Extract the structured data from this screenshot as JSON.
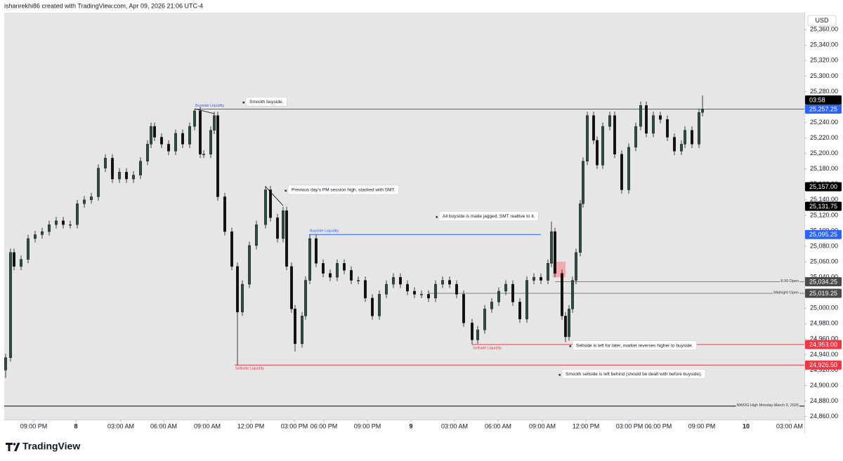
{
  "header": "ishanrekhi86 created with TradingView.com, Apr 09, 2026 21:06 UTC-4",
  "brand": "TradingView",
  "chart_data": {
    "type": "candlestick",
    "currency": "USD",
    "up_color": "#2f4f3c",
    "down_color": "#111111",
    "xlim": [
      6,
      1145
    ],
    "ylim": [
      24856,
      25382
    ],
    "x": [
      8,
      15,
      20,
      30,
      40,
      50,
      60,
      70,
      80,
      90,
      100,
      110,
      120,
      130,
      140,
      150,
      160,
      170,
      180,
      190,
      200,
      210,
      215,
      220,
      230,
      240,
      250,
      260,
      270,
      277,
      285,
      290,
      300,
      305,
      310,
      320,
      330,
      338,
      345,
      355,
      365,
      378,
      385,
      395,
      403,
      408,
      415,
      420,
      430,
      435,
      441,
      450,
      460,
      470,
      480,
      490,
      500,
      510,
      520,
      530,
      540,
      550,
      560,
      570,
      580,
      590,
      600,
      610,
      620,
      630,
      640,
      650,
      660,
      672,
      680,
      690,
      700,
      710,
      720,
      730,
      740,
      750,
      760,
      770,
      780,
      785,
      790,
      800,
      805,
      810,
      815,
      820,
      826,
      830,
      836,
      845,
      850,
      858,
      868,
      875,
      885,
      895,
      905,
      912,
      920,
      930,
      940,
      950,
      960,
      970,
      975,
      985,
      995,
      1000
    ],
    "open": [
      24920,
      24936,
      25072,
      25054,
      25063,
      25090,
      25095,
      25099,
      25108,
      25113,
      25108,
      25108,
      25135,
      25140,
      25144,
      25181,
      25194,
      25167,
      25176,
      25167,
      25172,
      25190,
      25212,
      25235,
      25221,
      25212,
      25203,
      25226,
      25212,
      25235,
      25255,
      25199,
      25199,
      25230,
      25249,
      25144,
      25099,
      25054,
      24995,
      25031,
      25081,
      25108,
      25153,
      25117,
      25090,
      25126,
      25054,
      24999,
      24954,
      24990,
      25036,
      25090,
      25058,
      25045,
      25040,
      25058,
      25049,
      25036,
      25036,
      25013,
      24990,
      25018,
      25031,
      25040,
      25031,
      25022,
      25018,
      25018,
      25013,
      25031,
      25036,
      25031,
      25018,
      24981,
      24959,
      24972,
      24999,
      25008,
      25022,
      25031,
      25008,
      24986,
      25036,
      25040,
      25036,
      25058,
      25099,
      25045,
      24990,
      24963,
      24999,
      25036,
      25072,
      25135,
      25190,
      25249,
      25217,
      25185,
      25235,
      25249,
      25199,
      25153,
      25208,
      25235,
      25262,
      25226,
      25249,
      25244,
      25221,
      25203,
      25212,
      25230,
      25212,
      25253
    ],
    "high": [
      24941,
      25077,
      25077,
      25068,
      25095,
      25100,
      25104,
      25113,
      25118,
      25118,
      25113,
      25140,
      25145,
      25149,
      25186,
      25199,
      25199,
      25181,
      25181,
      25177,
      25195,
      25217,
      25240,
      25240,
      25226,
      25217,
      25231,
      25231,
      25240,
      25257,
      25260,
      25204,
      25235,
      25254,
      25254,
      25149,
      25104,
      25059,
      25036,
      25086,
      25113,
      25158,
      25158,
      25122,
      25131,
      25131,
      25059,
      25004,
      24995,
      25041,
      25095,
      25095,
      25063,
      25050,
      25063,
      25063,
      25054,
      25041,
      25041,
      25018,
      25023,
      25036,
      25045,
      25045,
      25036,
      25027,
      25023,
      25023,
      25036,
      25041,
      25041,
      25036,
      25023,
      24986,
      24977,
      25004,
      25013,
      25027,
      25036,
      25036,
      25013,
      25041,
      25045,
      25045,
      25063,
      25112,
      25104,
      25050,
      24995,
      25004,
      25041,
      25077,
      25140,
      25195,
      25254,
      25254,
      25222,
      25240,
      25254,
      25254,
      25204,
      25213,
      25240,
      25267,
      25267,
      25254,
      25254,
      25249,
      25226,
      25217,
      25235,
      25235,
      25258,
      25275
    ],
    "low": [
      24910,
      24931,
      25049,
      25049,
      25058,
      25085,
      25090,
      25094,
      25103,
      25103,
      25103,
      25103,
      25130,
      25135,
      25139,
      25176,
      25162,
      25162,
      25162,
      25162,
      25167,
      25185,
      25207,
      25216,
      25207,
      25198,
      25198,
      25207,
      25207,
      25230,
      25194,
      25194,
      25194,
      25225,
      25139,
      25094,
      25049,
      24926.5,
      24990,
      25026,
      25076,
      25103,
      25112,
      25085,
      25085,
      25049,
      24994,
      24944,
      24949,
      24985,
      25031,
      25053,
      25040,
      25035,
      25035,
      25044,
      25031,
      25031,
      25008,
      24985,
      24985,
      25013,
      25026,
      25026,
      25017,
      25013,
      25013,
      25008,
      25008,
      25026,
      25026,
      25013,
      24976,
      24953,
      24954,
      24967,
      24994,
      25003,
      25017,
      25003,
      24981,
      24981,
      25031,
      25031,
      25031,
      25053,
      25040,
      24985,
      24956,
      24958,
      24994,
      25031,
      25067,
      25130,
      25185,
      25212,
      25180,
      25180,
      25230,
      25194,
      25148,
      25148,
      25203,
      25230,
      25221,
      25221,
      25239,
      25216,
      25198,
      25198,
      25207,
      25207,
      25207,
      25248
    ],
    "close": [
      24936,
      25072,
      25054,
      25063,
      25090,
      25095,
      25099,
      25108,
      25113,
      25108,
      25108,
      25135,
      25140,
      25144,
      25181,
      25194,
      25167,
      25176,
      25167,
      25172,
      25190,
      25212,
      25235,
      25221,
      25212,
      25203,
      25226,
      25212,
      25235,
      25255,
      25199,
      25199,
      25230,
      25249,
      25144,
      25099,
      25054,
      24995,
      25031,
      25081,
      25108,
      25153,
      25117,
      25090,
      25126,
      25054,
      24999,
      24954,
      24990,
      25036,
      25090,
      25058,
      25045,
      25040,
      25058,
      25049,
      25036,
      25036,
      25013,
      24990,
      25018,
      25031,
      25040,
      25031,
      25022,
      25018,
      25018,
      25013,
      25031,
      25036,
      25031,
      25018,
      24981,
      24959,
      24972,
      24999,
      25008,
      25022,
      25031,
      25008,
      24986,
      25036,
      25040,
      25036,
      25058,
      25099,
      25045,
      24990,
      24963,
      24999,
      25036,
      25072,
      25135,
      25190,
      25249,
      25217,
      25185,
      25235,
      25249,
      25199,
      25153,
      25208,
      25235,
      25262,
      25226,
      25249,
      25244,
      25221,
      25203,
      25212,
      25230,
      25212,
      25253,
      25257.25
    ],
    "yticks": [
      {
        "value": 24860,
        "label": "24,860.00"
      },
      {
        "value": 24880,
        "label": "24,880.00"
      },
      {
        "value": 24900,
        "label": "24,900.00"
      },
      {
        "value": 24920,
        "label": "24,920.00"
      },
      {
        "value": 24940,
        "label": "24,940.00"
      },
      {
        "value": 24960,
        "label": "24,960.00"
      },
      {
        "value": 24980,
        "label": "24,980.00"
      },
      {
        "value": 25000,
        "label": "25,000.00"
      },
      {
        "value": 25020,
        "label": "25,020.00"
      },
      {
        "value": 25040,
        "label": "25,040.00"
      },
      {
        "value": 25060,
        "label": "25,060.00"
      },
      {
        "value": 25080,
        "label": "25,080.00"
      },
      {
        "value": 25100,
        "label": "25,100.00"
      },
      {
        "value": 25120,
        "label": "25,120.00"
      },
      {
        "value": 25140,
        "label": "25,140.00"
      },
      {
        "value": 25160,
        "label": "25,160.00"
      },
      {
        "value": 25180,
        "label": "25,180.00"
      },
      {
        "value": 25200,
        "label": "25,200.00"
      },
      {
        "value": 25220,
        "label": "25,220.00"
      },
      {
        "value": 25240,
        "label": "25,240.00"
      },
      {
        "value": 25260,
        "label": "25,260.00"
      },
      {
        "value": 25280,
        "label": "25,280.00"
      },
      {
        "value": 25300,
        "label": "25,300.00"
      },
      {
        "value": 25320,
        "label": "25,320.00"
      },
      {
        "value": 25340,
        "label": "25,340.00"
      },
      {
        "value": 25360,
        "label": "25,360.00"
      }
    ],
    "xticks": [
      {
        "value": 48,
        "label": "09:00 PM"
      },
      {
        "value": 108,
        "label": "8"
      },
      {
        "value": 172,
        "label": "03:00 AM"
      },
      {
        "value": 233,
        "label": "06:00 AM"
      },
      {
        "value": 295,
        "label": "09:00 AM"
      },
      {
        "value": 357,
        "label": "12:00 PM"
      },
      {
        "value": 419,
        "label": "03:00 PM"
      },
      {
        "value": 461,
        "label": "06:00 PM"
      },
      {
        "value": 523,
        "label": "09:00 PM"
      },
      {
        "value": 585,
        "label": "9"
      },
      {
        "value": 647,
        "label": "03:00 AM"
      },
      {
        "value": 709,
        "label": "06:00 AM"
      },
      {
        "value": 772,
        "label": "09:00 AM"
      },
      {
        "value": 834,
        "label": "12:00 PM"
      },
      {
        "value": 896,
        "label": "03:00 PM"
      },
      {
        "value": 937,
        "label": "06:00 PM"
      },
      {
        "value": 999,
        "label": "09:00 PM"
      },
      {
        "value": 1062,
        "label": "10"
      },
      {
        "value": 1124,
        "label": "03:00 AM"
      }
    ],
    "levels": [
      {
        "value": 25257.25,
        "from": 277,
        "to": 1145,
        "color": "#2962ff",
        "label": "Buyside Liquidity",
        "label_pos": "above-start"
      },
      {
        "value": 25095.25,
        "from": 440,
        "to": 770,
        "color": "#2962ff",
        "label": "Buyside Liquidity",
        "label_pos": "above-start"
      },
      {
        "value": 25034.25,
        "from": 790,
        "to": 1145,
        "color": "#808080",
        "label": "8:30 Open",
        "label_pos": "end"
      },
      {
        "value": 25019.25,
        "from": 610,
        "to": 1145,
        "color": "#808080",
        "label": "Midnight Open",
        "label_pos": "end"
      },
      {
        "value": 24953,
        "from": 672,
        "to": 1145,
        "color": "#f23645",
        "label": "Sellside Liquidity",
        "label_pos": "below-start"
      },
      {
        "value": 24926.5,
        "from": 334,
        "to": 1145,
        "color": "#f23645",
        "label": "Sellside Liquidity",
        "label_pos": "below-start"
      },
      {
        "value": 24873.5,
        "from": 6,
        "to": 1145,
        "color": "#000000",
        "label": "NWOG High Monday March 9, 2026",
        "label_pos": "end"
      }
    ],
    "price_marks": [
      {
        "value": 25257.25,
        "label": "25,257.25",
        "color": "#2962ff",
        "countdown": "03:58"
      },
      {
        "value": 25157,
        "label": "25,157.00",
        "color": "#000000"
      },
      {
        "value": 25131.75,
        "label": "25,131.75",
        "color": "#000000"
      },
      {
        "value": 25095.25,
        "label": "25,095.25",
        "color": "#2962ff"
      },
      {
        "value": 25034.25,
        "label": "25,034.25",
        "color": "#4a4a4a"
      },
      {
        "value": 25019.25,
        "label": "25,019.25",
        "color": "#4a4a4a"
      },
      {
        "value": 24953,
        "label": "24,953.00",
        "color": "#f23645"
      },
      {
        "value": 24926.5,
        "label": "24,926.50",
        "color": "#f23645"
      }
    ],
    "zones": [
      {
        "from": 787,
        "to": 805,
        "low": 25040,
        "high": 25060,
        "color": "#f2a0a6"
      }
    ],
    "annotations": [
      {
        "text": "Smooth buyside.",
        "x": 350,
        "y": 25267
      },
      {
        "text": "Previous day's PM session high, stacked with SMT.",
        "x": 410,
        "y": 25153
      },
      {
        "text": "All buyside is made jagged, SMT realtive to it.",
        "x": 625,
        "y": 25119
      },
      {
        "text": "Sellside is left for later, market reverses higher to buyside.",
        "x": 815,
        "y": 24952
      },
      {
        "text": "Smooth sellside is left behind (should be dealt with before buyside).",
        "x": 800,
        "y": 24915
      }
    ]
  }
}
